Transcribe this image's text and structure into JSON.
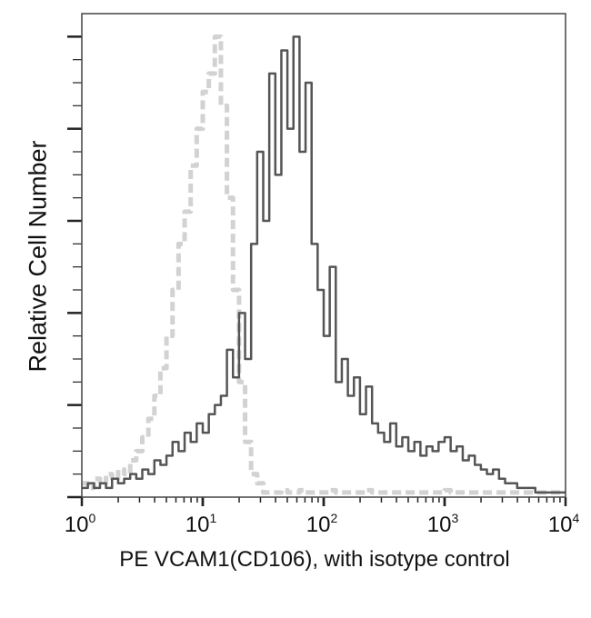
{
  "chart_data": {
    "type": "line",
    "title": "",
    "xlabel": "PE VCAM1(CD106), with isotype control",
    "ylabel": "Relative Cell Number",
    "x_scale": "log",
    "xlim": [
      1,
      10000
    ],
    "ylim": [
      0,
      105
    ],
    "x_ticks": [
      {
        "base": "10",
        "exp": "0"
      },
      {
        "base": "10",
        "exp": "1"
      },
      {
        "base": "10",
        "exp": "2"
      },
      {
        "base": "10",
        "exp": "3"
      },
      {
        "base": "10",
        "exp": "4"
      }
    ],
    "y_tick_labels": "none",
    "grid": false,
    "legend": "none",
    "x_log10": [
      0,
      0.05,
      0.1,
      0.15,
      0.2,
      0.25,
      0.3,
      0.35,
      0.4,
      0.45,
      0.5,
      0.55,
      0.6,
      0.65,
      0.7,
      0.75,
      0.8,
      0.85,
      0.9,
      0.95,
      1.0,
      1.05,
      1.1,
      1.15,
      1.2,
      1.25,
      1.3,
      1.35,
      1.4,
      1.45,
      1.5,
      1.55,
      1.6,
      1.65,
      1.7,
      1.75,
      1.8,
      1.85,
      1.9,
      1.95,
      2.0,
      2.05,
      2.1,
      2.15,
      2.2,
      2.25,
      2.3,
      2.35,
      2.4,
      2.45,
      2.5,
      2.55,
      2.6,
      2.65,
      2.7,
      2.75,
      2.8,
      2.85,
      2.9,
      2.95,
      3.0,
      3.05,
      3.1,
      3.15,
      3.2,
      3.25,
      3.3,
      3.35,
      3.4,
      3.45,
      3.5,
      3.55,
      3.6,
      3.65,
      3.7,
      3.75,
      3.8,
      3.85,
      3.9,
      3.95,
      4.0
    ],
    "series": [
      {
        "style": "isotype-dashed",
        "color": "#d2d2d2",
        "values": [
          3,
          2,
          4,
          3,
          5,
          4,
          6,
          5,
          8,
          10,
          13,
          17,
          22,
          28,
          35,
          45,
          55,
          62,
          72,
          80,
          88,
          92,
          100,
          85,
          65,
          45,
          25,
          12,
          5,
          3,
          1,
          1,
          1,
          1.5,
          1,
          1,
          1.5,
          1,
          1,
          1,
          1,
          1.5,
          1,
          1,
          1,
          1,
          1,
          1.5,
          1,
          1,
          1,
          1,
          1,
          1,
          1,
          1,
          1,
          1,
          1,
          1,
          1.5,
          1,
          1,
          1,
          1,
          1,
          1,
          1,
          1,
          1,
          1,
          1,
          1,
          1,
          1,
          1,
          1,
          1,
          1,
          1,
          1
        ]
      },
      {
        "style": "sample-solid",
        "color": "#555555",
        "values": [
          2,
          3,
          2,
          3,
          2,
          4,
          3,
          4,
          5,
          4,
          6,
          5,
          8,
          7,
          9,
          12,
          10,
          14,
          12,
          16,
          14,
          18,
          20,
          22,
          32,
          26,
          40,
          30,
          55,
          75,
          60,
          92,
          70,
          97,
          80,
          100,
          75,
          90,
          55,
          45,
          35,
          50,
          25,
          30,
          22,
          26,
          18,
          24,
          16,
          14,
          12,
          16,
          11,
          13,
          10,
          12,
          9,
          11,
          10,
          12,
          13,
          10,
          11,
          8,
          9,
          7,
          6,
          5,
          6,
          4,
          3,
          3,
          2,
          2,
          2,
          1,
          1,
          1,
          1,
          1,
          1
        ]
      }
    ]
  }
}
